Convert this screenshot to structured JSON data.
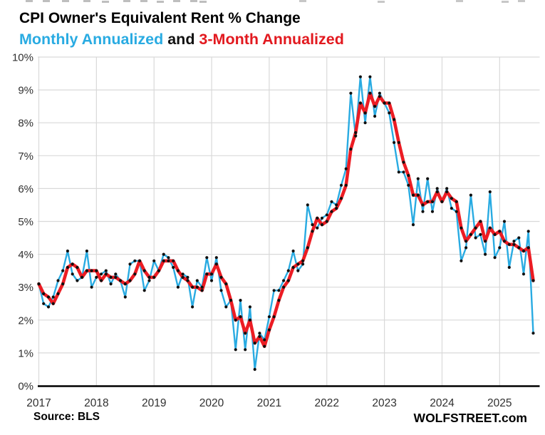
{
  "header": {
    "title": "CPI Owner's Equivalent Rent % Change",
    "connector": " and "
  },
  "footer": {
    "source": "Source: BLS",
    "branding": "WOLFSTREET.com"
  },
  "colors": {
    "grid": "#d9d9d9",
    "axis": "#000000",
    "tick_label": "#303030",
    "marker": "#101010",
    "monthly_line": "#29abe2",
    "three_month_line": "#ec1c23"
  },
  "chart_data": {
    "type": "line",
    "title": "CPI Owner's Equivalent Rent % Change",
    "subtitle": "Monthly Annualized and 3-Month Annualized",
    "x_unit": "month",
    "x_start": "2017-01",
    "x_end": "2025-08",
    "categories": [
      "2017",
      "2018",
      "2019",
      "2020",
      "2021",
      "2022",
      "2023",
      "2024",
      "2025"
    ],
    "ylim": [
      0,
      10
    ],
    "yticks": [
      "0%",
      "1%",
      "2%",
      "3%",
      "4%",
      "5%",
      "6%",
      "7%",
      "8%",
      "9%",
      "10%"
    ],
    "grid": true,
    "legend_position": "in-subtitle",
    "series": [
      {
        "name": "Monthly Annualized",
        "color": "#29abe2",
        "values": [
          3.1,
          2.5,
          2.4,
          2.7,
          3.2,
          3.5,
          4.1,
          3.4,
          3.2,
          3.3,
          4.1,
          3.0,
          3.3,
          3.4,
          3.5,
          3.1,
          3.4,
          3.2,
          2.7,
          3.7,
          3.8,
          3.8,
          2.9,
          3.2,
          3.8,
          3.5,
          4.0,
          3.9,
          3.6,
          3.0,
          3.4,
          3.3,
          2.4,
          3.2,
          3.0,
          3.9,
          3.2,
          3.9,
          2.9,
          2.4,
          2.6,
          1.1,
          2.6,
          1.1,
          2.4,
          0.5,
          1.6,
          1.4,
          2.1,
          2.9,
          2.9,
          3.2,
          3.5,
          4.1,
          3.5,
          3.7,
          5.5,
          4.9,
          4.8,
          5.1,
          5.2,
          5.6,
          5.5,
          6.1,
          6.6,
          8.9,
          7.6,
          9.4,
          8.0,
          9.4,
          8.2,
          8.9,
          8.6,
          8.3,
          7.4,
          6.5,
          6.5,
          6.1,
          4.9,
          6.3,
          5.3,
          6.3,
          5.3,
          6.0,
          5.6,
          6.0,
          5.4,
          5.3,
          3.8,
          4.2,
          5.8,
          4.5,
          4.6,
          4.0,
          5.9,
          3.9,
          4.2,
          5.0,
          3.6,
          4.4,
          4.5,
          3.4,
          4.7,
          1.6
        ]
      },
      {
        "name": "3-Month Annualized",
        "color": "#ec1c23",
        "values": [
          3.1,
          2.8,
          2.7,
          2.5,
          2.8,
          3.1,
          3.6,
          3.7,
          3.6,
          3.3,
          3.5,
          3.5,
          3.5,
          3.2,
          3.4,
          3.3,
          3.3,
          3.2,
          3.1,
          3.2,
          3.4,
          3.8,
          3.5,
          3.3,
          3.3,
          3.5,
          3.8,
          3.8,
          3.8,
          3.5,
          3.3,
          3.2,
          3.0,
          3.0,
          2.9,
          3.4,
          3.4,
          3.7,
          3.3,
          3.1,
          2.6,
          2.0,
          2.1,
          1.6,
          2.0,
          1.3,
          1.5,
          1.2,
          1.7,
          2.1,
          2.6,
          3.0,
          3.2,
          3.6,
          3.7,
          3.8,
          4.2,
          4.7,
          5.1,
          4.9,
          5.0,
          5.3,
          5.4,
          5.7,
          6.1,
          7.2,
          7.7,
          8.6,
          8.3,
          8.9,
          8.5,
          8.8,
          8.6,
          8.6,
          8.1,
          7.4,
          6.8,
          6.4,
          5.8,
          5.8,
          5.5,
          5.6,
          5.6,
          5.9,
          5.6,
          5.9,
          5.7,
          5.6,
          4.8,
          4.4,
          4.6,
          4.8,
          5.0,
          4.4,
          4.8,
          4.6,
          4.7,
          4.4,
          4.3,
          4.3,
          4.2,
          4.1,
          4.2,
          3.2
        ]
      }
    ]
  }
}
